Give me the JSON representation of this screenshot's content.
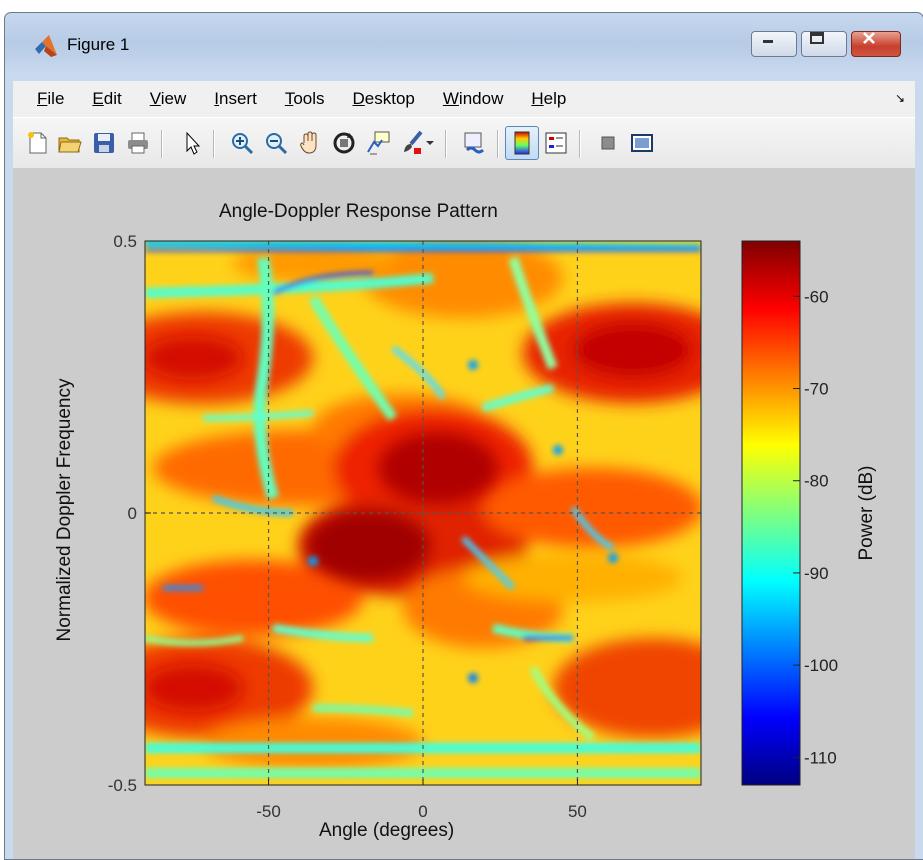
{
  "window": {
    "title": "Figure 1",
    "caption_buttons": [
      "minimize-button",
      "maximize-button",
      "close-button"
    ]
  },
  "menubar": {
    "items": [
      {
        "label_pre": "",
        "label_u": "F",
        "label_post": "ile"
      },
      {
        "label_pre": "",
        "label_u": "E",
        "label_post": "dit"
      },
      {
        "label_pre": "",
        "label_u": "V",
        "label_post": "iew"
      },
      {
        "label_pre": "",
        "label_u": "I",
        "label_post": "nsert"
      },
      {
        "label_pre": "",
        "label_u": "T",
        "label_post": "ools"
      },
      {
        "label_pre": "",
        "label_u": "D",
        "label_post": "esktop"
      },
      {
        "label_pre": "",
        "label_u": "W",
        "label_post": "indow"
      },
      {
        "label_pre": "",
        "label_u": "H",
        "label_post": "elp"
      }
    ],
    "overflow_icon": "chevron-down-icon"
  },
  "toolbar": {
    "icons": [
      "new-figure-icon",
      "open-file-icon",
      "save-icon",
      "print-icon",
      "edit-plot-arrow-icon",
      "zoom-in-icon",
      "zoom-out-icon",
      "pan-hand-icon",
      "rotate-3d-icon",
      "data-cursor-icon",
      "brush-icon",
      "brush-dropdown-icon",
      "link-plot-icon",
      "colorbar-icon",
      "legend-icon",
      "hide-plot-tools-icon",
      "show-plot-tools-icon"
    ]
  },
  "chart_data": {
    "type": "heatmap",
    "title": "Angle-Doppler Response Pattern",
    "xlabel": "Angle (degrees)",
    "ylabel": "Normalized Doppler Frequency",
    "xlim": [
      -90,
      90
    ],
    "ylim": [
      -0.5,
      0.5
    ],
    "xticks": [
      -50,
      0,
      50
    ],
    "yticks": [
      -0.5,
      0,
      0.5
    ],
    "ytick_labels": [
      "-0.5",
      "0",
      "0.5"
    ],
    "grid": true,
    "peaks": [
      {
        "angle": 10,
        "doppler": 0.08,
        "power_db": -54
      },
      {
        "angle": -10,
        "doppler": -0.07,
        "power_db": -54
      }
    ],
    "colorbar": {
      "label": "Power (dB)",
      "range": [
        -113,
        -54
      ],
      "ticks": [
        -60,
        -70,
        -80,
        -90,
        -100,
        -110
      ],
      "colormap": "jet"
    }
  },
  "colors": {
    "figure_bg": "#cccccc",
    "grid": "#555555"
  }
}
